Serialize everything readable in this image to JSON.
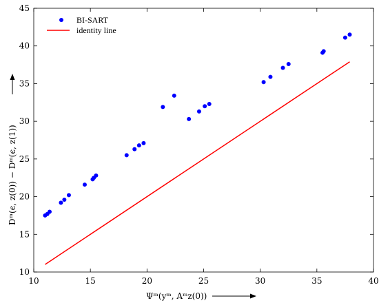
{
  "chart_data": {
    "type": "scatter",
    "xlabel": "Ψᵐ(yᵐ, Aᵐz(0))",
    "ylabel": "Dᵐ(ϵ, z(0)) − Dᵐ(ϵ, z(1))",
    "xlim": [
      10,
      40
    ],
    "ylim": [
      10,
      45
    ],
    "xticks": [
      10,
      15,
      20,
      25,
      30,
      35,
      40
    ],
    "yticks": [
      10,
      15,
      20,
      25,
      30,
      35,
      40,
      45
    ],
    "grid": false,
    "legend_position": "top-left",
    "series": [
      {
        "name": "BI-SART",
        "kind": "scatter",
        "color": "#0000ff",
        "points": [
          [
            11.0,
            17.5
          ],
          [
            11.2,
            17.7
          ],
          [
            11.4,
            18.0
          ],
          [
            12.4,
            19.2
          ],
          [
            12.7,
            19.6
          ],
          [
            13.1,
            20.2
          ],
          [
            14.5,
            21.6
          ],
          [
            15.2,
            22.3
          ],
          [
            15.3,
            22.5
          ],
          [
            15.5,
            22.8
          ],
          [
            18.2,
            25.5
          ],
          [
            18.9,
            26.3
          ],
          [
            19.3,
            26.8
          ],
          [
            19.7,
            27.1
          ],
          [
            21.4,
            31.9
          ],
          [
            22.4,
            33.4
          ],
          [
            23.7,
            30.3
          ],
          [
            24.6,
            31.3
          ],
          [
            25.1,
            32.0
          ],
          [
            25.5,
            32.3
          ],
          [
            30.3,
            35.2
          ],
          [
            30.9,
            35.9
          ],
          [
            32.0,
            37.1
          ],
          [
            32.5,
            37.6
          ],
          [
            35.5,
            39.1
          ],
          [
            35.6,
            39.3
          ],
          [
            37.5,
            41.1
          ],
          [
            37.9,
            41.5
          ]
        ]
      },
      {
        "name": "identity line",
        "kind": "line",
        "color": "#ff0000",
        "points": [
          [
            11.0,
            11.0
          ],
          [
            37.9,
            37.9
          ]
        ]
      }
    ]
  }
}
